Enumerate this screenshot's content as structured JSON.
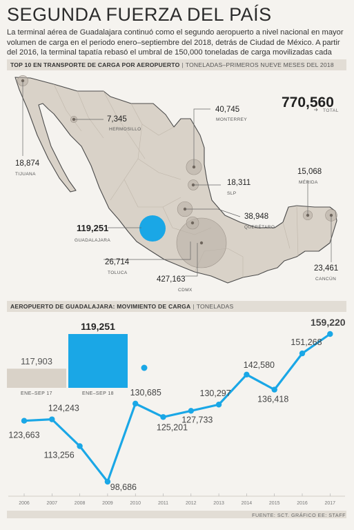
{
  "title": "SEGUNDA FUERZA DEL PAÍS",
  "intro": "La terminal aérea de Guadalajara continuó como el segundo aeropuerto a nivel nacional en mayor volumen de carga en el periodo enero–septiembre del 2018, detrás de Ciudad de México. A partir del 2016, la terminal tapatía rebasó el umbral de 150,000 toneladas de carga movilizadas cada año.",
  "map_section": {
    "header": "TOP 10 EN TRANSPORTE DE CARGA POR AEROPUERTO",
    "subheader": "TONELADAS–PRIMEROS NUEVE MESES DEL 2018",
    "total_value": "770,560",
    "total_label": "TOTAL"
  },
  "line_section": {
    "header": "AEROPUERTO DE GUADALAJARA: MOVIMIENTO DE CARGA",
    "subheader": "TONELADAS"
  },
  "source": "FUENTE: SCT. GRÁFICO EE: STAFF",
  "colors": {
    "accent": "#1aa7e6",
    "map": "#d9d2c8",
    "bubble": "#b9b0a6",
    "band": "#e2ddd5"
  },
  "chart_data": [
    {
      "type": "bubble-map",
      "points": [
        {
          "name": "TIJUANA",
          "value": 18874,
          "label": "18,874"
        },
        {
          "name": "HERMOSILLO",
          "value": 7345,
          "label": "7,345"
        },
        {
          "name": "MONTERREY",
          "value": 40745,
          "label": "40,745"
        },
        {
          "name": "SLP",
          "value": 18311,
          "label": "18,311"
        },
        {
          "name": "MÉRIDA",
          "value": 15068,
          "label": "15,068"
        },
        {
          "name": "QUERÉTARO",
          "value": 38948,
          "label": "38,948"
        },
        {
          "name": "GUADALAJARA",
          "value": 119251,
          "label": "119,251",
          "highlight": true
        },
        {
          "name": "TOLUCA",
          "value": 26714,
          "label": "26,714"
        },
        {
          "name": "CDMX",
          "value": 427163,
          "label": "427,163"
        },
        {
          "name": "CANCÚN",
          "value": 23461,
          "label": "23,461"
        }
      ]
    },
    {
      "type": "bar",
      "categories": [
        "ENE–SEP 17",
        "ENE–SEP 18"
      ],
      "values": [
        117903,
        119251
      ],
      "labels": [
        "117,903",
        "119,251"
      ]
    },
    {
      "type": "line",
      "x": [
        "2006",
        "2007",
        "2008",
        "2009",
        "2010",
        "2011",
        "2012",
        "2013",
        "2014",
        "2015",
        "2016",
        "2017"
      ],
      "values": [
        123663,
        124243,
        113256,
        98686,
        130685,
        125201,
        127733,
        130297,
        142580,
        136418,
        151268,
        159220
      ],
      "labels": [
        "123,663",
        "124,243",
        "113,256",
        "98,686",
        "130,685",
        "125,201",
        "127,733",
        "130,297",
        "142,580",
        "136,418",
        "151,268",
        "159,220"
      ]
    }
  ]
}
